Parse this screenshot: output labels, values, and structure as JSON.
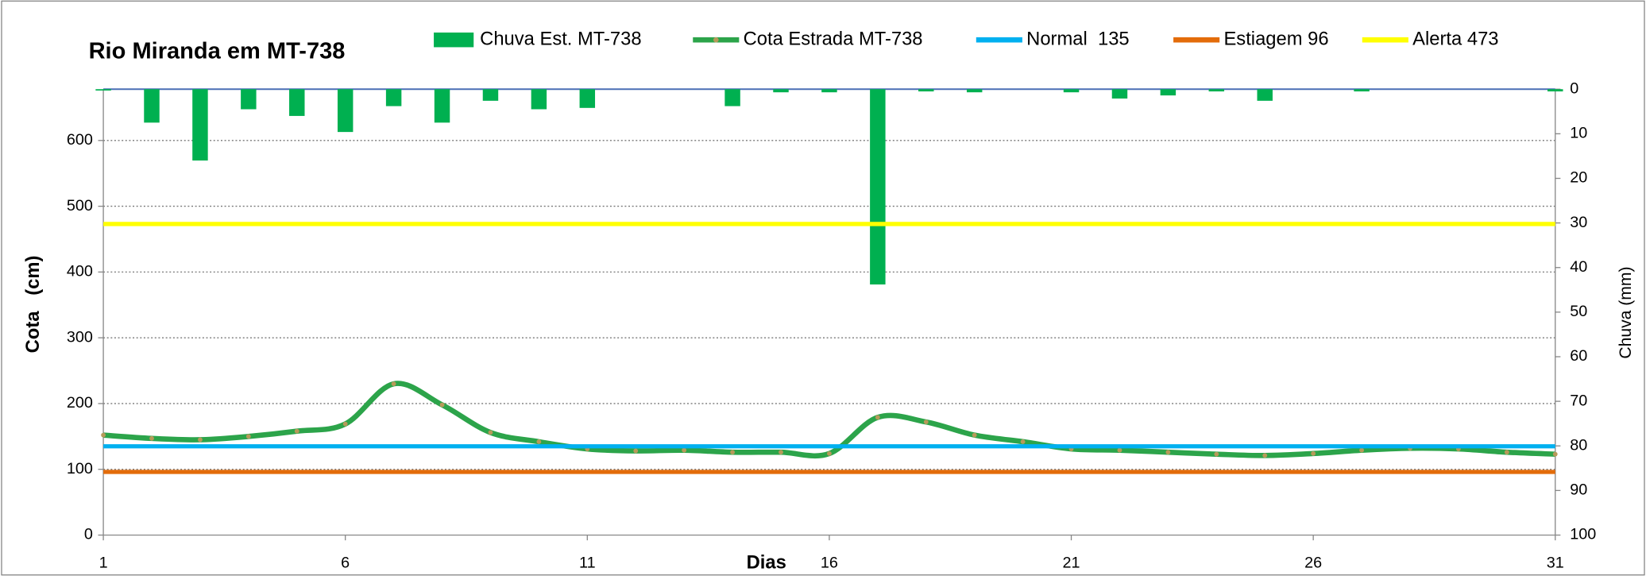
{
  "chart_data": {
    "type": "combo",
    "title": "Rio Miranda  em MT-738",
    "x_label": "Dias",
    "y_label": "Cota   (cm)",
    "y2_label": "Chuva (mm)",
    "x": [
      1,
      2,
      3,
      4,
      5,
      6,
      7,
      8,
      9,
      10,
      11,
      12,
      13,
      14,
      15,
      16,
      17,
      18,
      19,
      20,
      21,
      22,
      23,
      24,
      25,
      26,
      27,
      28,
      29,
      30,
      31
    ],
    "xlim": [
      1,
      31
    ],
    "xticks": [
      1,
      6,
      11,
      16,
      21,
      26,
      31
    ],
    "ylim": [
      0,
      678
    ],
    "yticks": [
      0,
      100,
      200,
      300,
      400,
      500,
      600
    ],
    "y2lim": [
      0,
      100
    ],
    "y2ticks": [
      0,
      10,
      20,
      30,
      40,
      50,
      60,
      70,
      80,
      90,
      100
    ],
    "y2_inverted": true,
    "grid": true,
    "series": [
      {
        "name": "Chuva Est. MT-738",
        "type": "bar",
        "axis": "y2",
        "color": "#00b050",
        "values": [
          0.3,
          7.5,
          16,
          4.5,
          6,
          9.6,
          3.8,
          7.5,
          2.6,
          4.5,
          4.2,
          0,
          0,
          3.8,
          0.7,
          0.7,
          43.8,
          0.5,
          0.7,
          0,
          0.7,
          2.1,
          1.4,
          0.5,
          2.6,
          0,
          0.5,
          0,
          0,
          0,
          0.5
        ]
      },
      {
        "name": "Cota Estrada MT-738",
        "type": "line",
        "color": "#2ca44a",
        "marker_color": "#b79a5a",
        "values": [
          152,
          147,
          145,
          150,
          158,
          169,
          230,
          198,
          156,
          142,
          131,
          128,
          129,
          126,
          126,
          124,
          179,
          172,
          152,
          142,
          131,
          129,
          126,
          123,
          121,
          124,
          129,
          132,
          131,
          126,
          123
        ]
      },
      {
        "name": "Normal  135",
        "type": "hline",
        "color": "#00b0f0",
        "value": 135
      },
      {
        "name": "Estiagem 96",
        "type": "hline",
        "color": "#e36c0a",
        "value": 96
      },
      {
        "name": "Alerta 473",
        "type": "hline",
        "color": "#ffff00",
        "value": 473
      }
    ]
  }
}
